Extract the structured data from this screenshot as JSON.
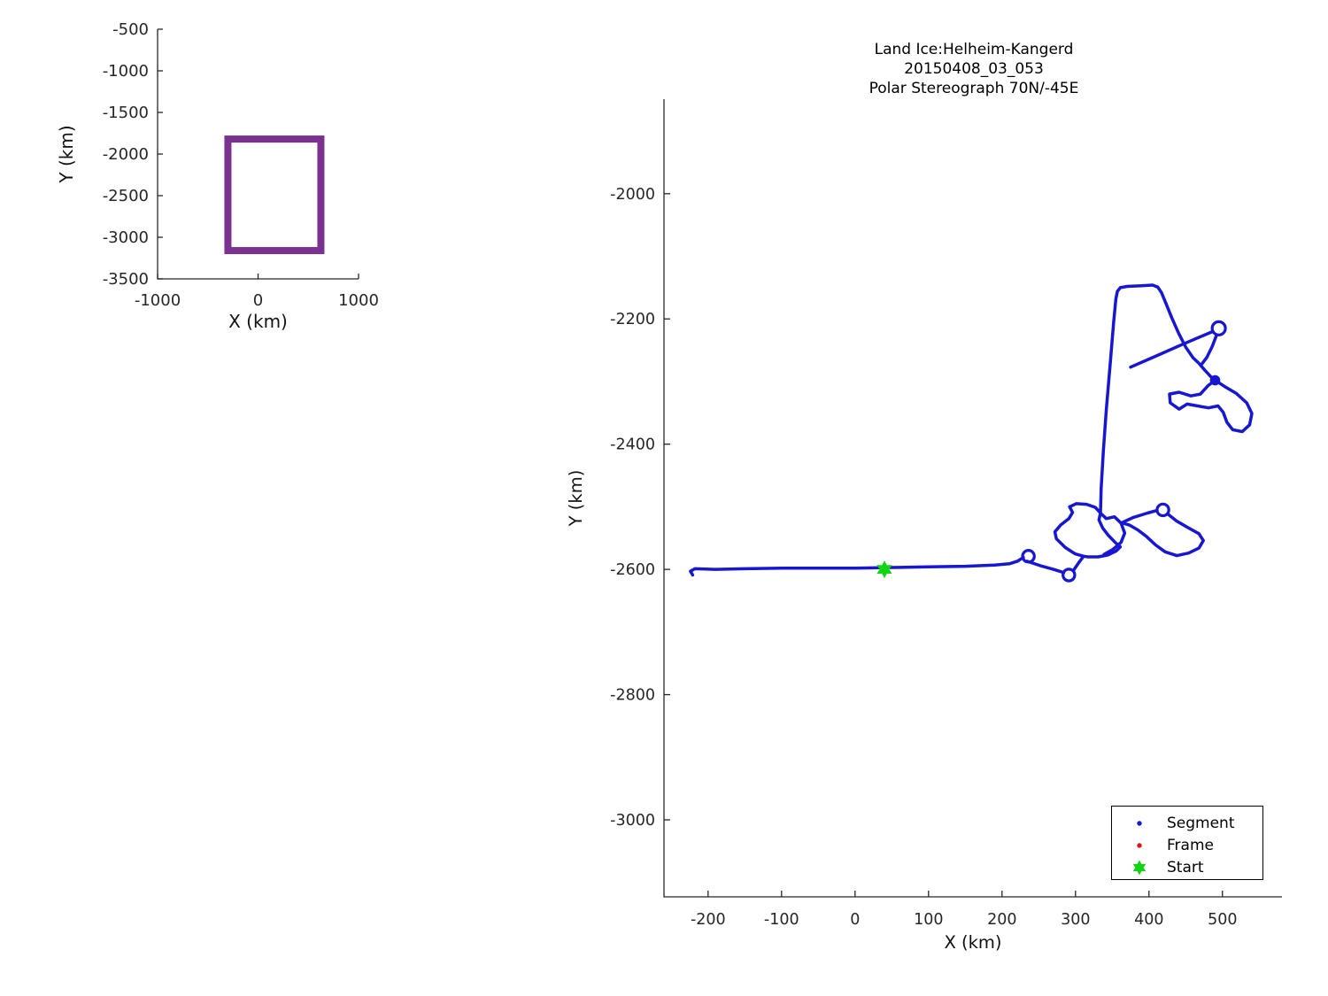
{
  "colors": {
    "segment": "#1717d2",
    "frame": "#dc1616",
    "start": "#12d412",
    "coverage": "#7c3190",
    "axis": "#262626"
  },
  "title": {
    "line1": "Land Ice:Helheim-Kangerd",
    "line2": "20150408_03_053",
    "line3": "Polar Stereograph 70N/-45E"
  },
  "legend": {
    "items": [
      {
        "label": "Segment",
        "marker": "dot",
        "color": "segment"
      },
      {
        "label": "Frame",
        "marker": "dot",
        "color": "frame"
      },
      {
        "label": "Start",
        "marker": "hexagram",
        "color": "start"
      }
    ]
  },
  "chart_data": [
    {
      "id": "overview",
      "type": "line",
      "title": "",
      "xlabel": "X (km)",
      "ylabel": "Y (km)",
      "xlim": [
        -1000,
        1000
      ],
      "ylim": [
        -3500,
        -500
      ],
      "xticks": [
        -1000,
        0,
        1000
      ],
      "yticks": [
        -500,
        -1000,
        -1500,
        -2000,
        -2500,
        -3000,
        -3500
      ],
      "grid": false,
      "series": [
        {
          "name": "coverage-box",
          "shape": "rect",
          "x0": -300,
          "x1": 625,
          "y0": -3160,
          "y1": -1820,
          "color": "coverage",
          "linewidth": 8
        }
      ]
    },
    {
      "id": "flight-track",
      "type": "line",
      "title": "Land Ice:Helheim-Kangerd 20150408_03_053 Polar Stereograph 70N/-45E",
      "xlabel": "X (km)",
      "ylabel": "Y (km)",
      "xlim": [
        -260,
        581
      ],
      "ylim": [
        -3123,
        -1849
      ],
      "xticks": [
        -200,
        -100,
        0,
        100,
        200,
        300,
        400,
        500
      ],
      "yticks": [
        -2000,
        -2200,
        -2400,
        -2600,
        -2800,
        -3000
      ],
      "grid": false,
      "legend_position": "lower right",
      "start": {
        "x": 40,
        "y": -2600
      },
      "segments": [
        {
          "name": "transit-line",
          "points": [
            [
              -221,
              -2609
            ],
            [
              -224,
              -2603
            ],
            [
              -218,
              -2599
            ],
            [
              -190,
              -2600
            ],
            [
              -150,
              -2599
            ],
            [
              -100,
              -2598
            ],
            [
              -50,
              -2598
            ],
            [
              0,
              -2598
            ],
            [
              50,
              -2597
            ],
            [
              100,
              -2596
            ],
            [
              150,
              -2595
            ],
            [
              190,
              -2593
            ],
            [
              210,
              -2591
            ],
            [
              221,
              -2587
            ],
            [
              229,
              -2581
            ]
          ]
        },
        {
          "name": "turn-circle-west",
          "type": "circle",
          "cx": 236,
          "cy": -2579,
          "r": 8
        },
        {
          "name": "cross-line",
          "points": [
            [
              234,
              -2587
            ],
            [
              252,
              -2594
            ],
            [
              270,
              -2600
            ],
            [
              284,
              -2605
            ]
          ]
        },
        {
          "name": "turn-circle-south",
          "type": "circle",
          "cx": 291,
          "cy": -2609,
          "r": 8
        },
        {
          "name": "approach-line",
          "points": [
            [
              297,
              -2602
            ],
            [
              304,
              -2590
            ],
            [
              311,
              -2579
            ]
          ]
        },
        {
          "name": "helheim-loop",
          "points": [
            [
              311,
              -2579
            ],
            [
              299,
              -2575
            ],
            [
              286,
              -2565
            ],
            [
              274,
              -2551
            ],
            [
              272,
              -2540
            ],
            [
              280,
              -2529
            ],
            [
              291,
              -2519
            ],
            [
              296,
              -2509
            ],
            [
              292,
              -2500
            ],
            [
              301,
              -2495
            ],
            [
              315,
              -2496
            ],
            [
              327,
              -2501
            ],
            [
              334,
              -2510
            ],
            [
              332,
              -2521
            ],
            [
              337,
              -2534
            ],
            [
              345,
              -2546
            ],
            [
              354,
              -2557
            ],
            [
              361,
              -2564
            ],
            [
              355,
              -2571
            ],
            [
              344,
              -2577
            ],
            [
              331,
              -2580
            ],
            [
              317,
              -2580
            ],
            [
              311,
              -2579
            ]
          ]
        },
        {
          "name": "helheim-loop-inner",
          "points": [
            [
              334,
              -2510
            ],
            [
              342,
              -2519
            ],
            [
              353,
              -2516
            ],
            [
              362,
              -2526
            ],
            [
              367,
              -2542
            ],
            [
              362,
              -2557
            ],
            [
              351,
              -2568
            ],
            [
              339,
              -2576
            ]
          ]
        },
        {
          "name": "east-diagonal",
          "points": [
            [
              362,
              -2526
            ],
            [
              379,
              -2517
            ],
            [
              398,
              -2510
            ],
            [
              411,
              -2506
            ]
          ]
        },
        {
          "name": "turn-circle-east",
          "type": "circle",
          "cx": 419,
          "cy": -2505,
          "r": 8
        },
        {
          "name": "east-loop",
          "points": [
            [
              426,
              -2512
            ],
            [
              438,
              -2523
            ],
            [
              454,
              -2534
            ],
            [
              468,
              -2543
            ],
            [
              474,
              -2554
            ],
            [
              468,
              -2566
            ],
            [
              454,
              -2574
            ],
            [
              438,
              -2578
            ],
            [
              422,
              -2572
            ],
            [
              409,
              -2561
            ],
            [
              397,
              -2548
            ],
            [
              385,
              -2537
            ],
            [
              373,
              -2529
            ],
            [
              364,
              -2526
            ]
          ]
        },
        {
          "name": "north-line",
          "points": [
            [
              334,
              -2510
            ],
            [
              335,
              -2470
            ],
            [
              338,
              -2410
            ],
            [
              342,
              -2345
            ],
            [
              347,
              -2275
            ],
            [
              352,
              -2205
            ],
            [
              355,
              -2168
            ],
            [
              357,
              -2156
            ],
            [
              361,
              -2150
            ],
            [
              370,
              -2148
            ],
            [
              390,
              -2147
            ],
            [
              405,
              -2146
            ],
            [
              412,
              -2149
            ],
            [
              417,
              -2158
            ],
            [
              423,
              -2175
            ],
            [
              431,
              -2198
            ],
            [
              440,
              -2222
            ],
            [
              450,
              -2245
            ],
            [
              460,
              -2262
            ],
            [
              468,
              -2271
            ],
            [
              476,
              -2282
            ],
            [
              484,
              -2292
            ],
            [
              490,
              -2298
            ]
          ]
        },
        {
          "name": "cross-diagonal",
          "points": [
            [
              375,
              -2277
            ],
            [
              410,
              -2259
            ],
            [
              445,
              -2241
            ],
            [
              475,
              -2226
            ],
            [
              487,
              -2220
            ]
          ]
        },
        {
          "name": "turn-circle-north",
          "type": "circle",
          "cx": 495,
          "cy": -2215,
          "r": 9
        },
        {
          "name": "descent-line",
          "points": [
            [
              492,
              -2226
            ],
            [
              486,
              -2244
            ],
            [
              479,
              -2261
            ],
            [
              472,
              -2272
            ]
          ]
        },
        {
          "name": "junction-dot",
          "type": "dot",
          "cx": 490,
          "cy": -2298,
          "r": 7
        },
        {
          "name": "kangerd-loop",
          "points": [
            [
              490,
              -2298
            ],
            [
              503,
              -2308
            ],
            [
              519,
              -2319
            ],
            [
              533,
              -2334
            ],
            [
              540,
              -2351
            ],
            [
              537,
              -2369
            ],
            [
              527,
              -2380
            ],
            [
              514,
              -2377
            ],
            [
              506,
              -2365
            ],
            [
              501,
              -2349
            ],
            [
              494,
              -2339
            ],
            [
              481,
              -2342
            ],
            [
              466,
              -2339
            ],
            [
              452,
              -2336
            ],
            [
              441,
              -2344
            ],
            [
              429,
              -2334
            ],
            [
              428,
              -2320
            ],
            [
              441,
              -2317
            ],
            [
              457,
              -2323
            ],
            [
              470,
              -2320
            ],
            [
              480,
              -2307
            ],
            [
              490,
              -2298
            ]
          ]
        }
      ]
    }
  ]
}
